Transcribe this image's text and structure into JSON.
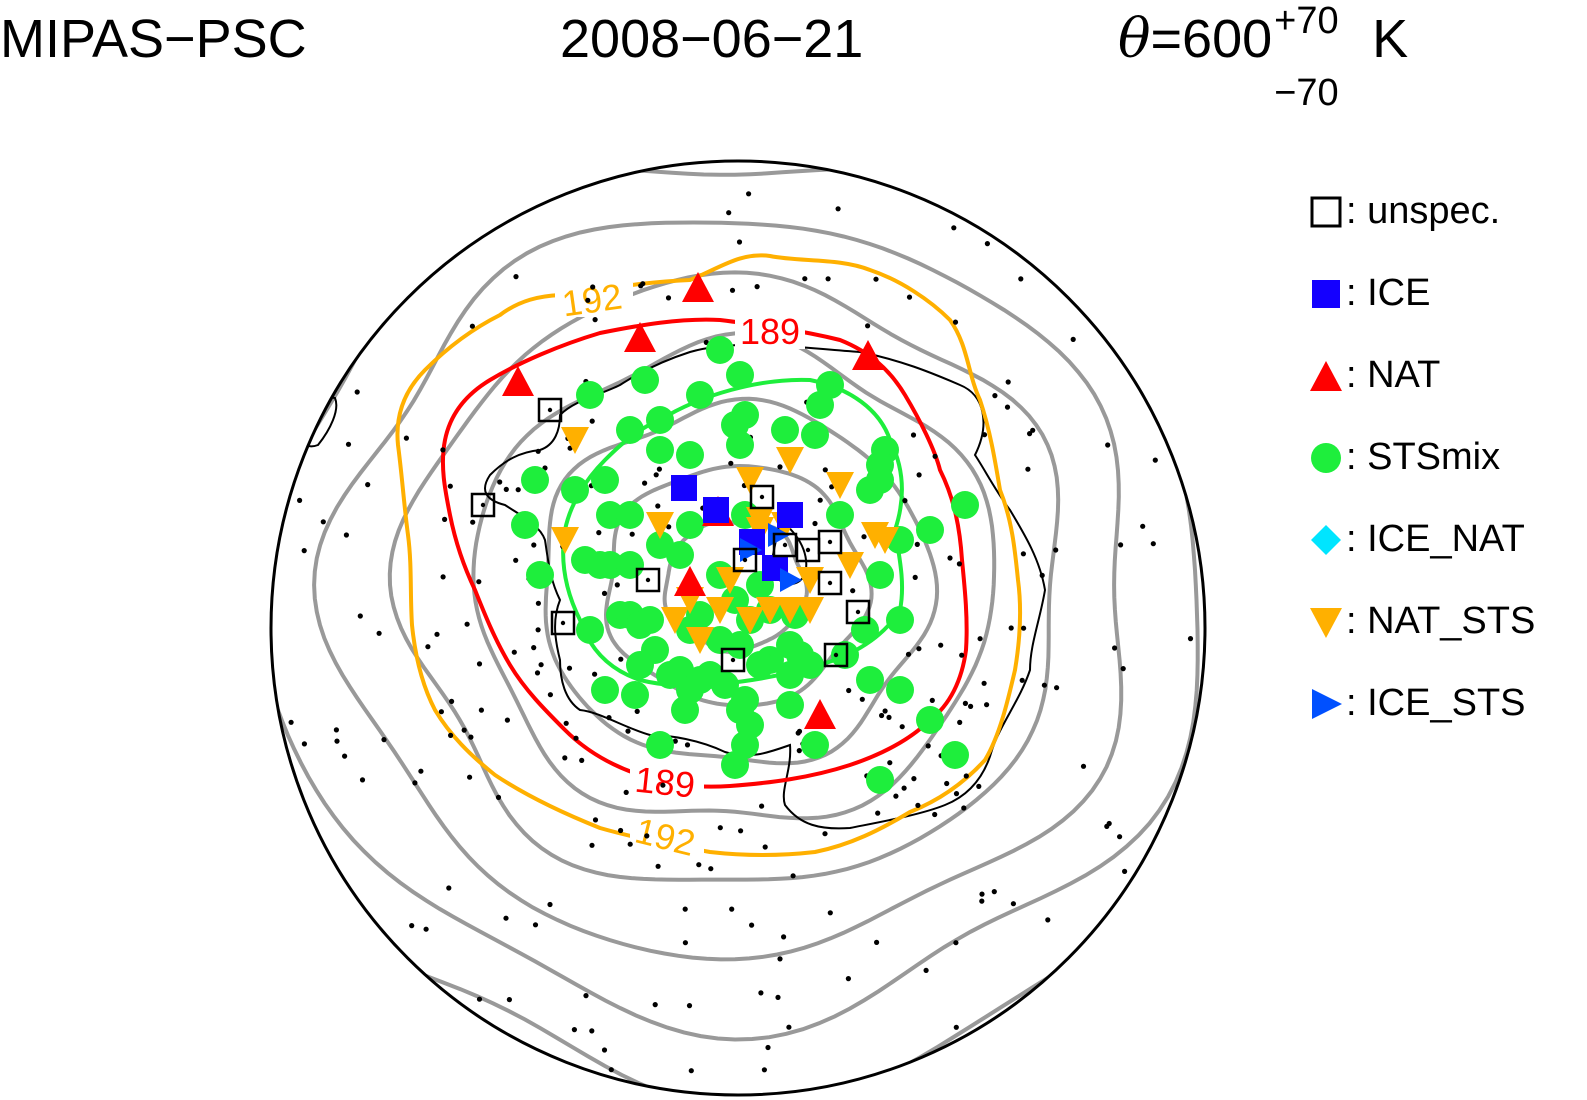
{
  "header": {
    "left": "MIPAS−PSC",
    "date": "2008−06−21",
    "theta": "θ",
    "eq_value": "=600",
    "sup": "+70",
    "sub": "−70",
    "unit": "K"
  },
  "contours": [
    {
      "label": "189",
      "color": "#ff0000"
    },
    {
      "label": "192",
      "color": "#ffb000"
    }
  ],
  "legend": [
    {
      "label": ": unspec.",
      "symbol": "square-open",
      "color": "#000000"
    },
    {
      "label": ": ICE",
      "symbol": "square",
      "color": "#1400ff"
    },
    {
      "label": ": NAT",
      "symbol": "triangle-up",
      "color": "#ff0000"
    },
    {
      "label": ": STSmix",
      "symbol": "circle",
      "color": "#1eee3c"
    },
    {
      "label": ": ICE_NAT",
      "symbol": "diamond",
      "color": "#00e5ff"
    },
    {
      "label": ": NAT_STS",
      "symbol": "triangle-down",
      "color": "#ffb000"
    },
    {
      "label": ": ICE_STS",
      "symbol": "triangle-right",
      "color": "#0050ff"
    }
  ],
  "colors": {
    "temperature_iso": "#999999",
    "inner_contour": "#1eee3c"
  }
}
